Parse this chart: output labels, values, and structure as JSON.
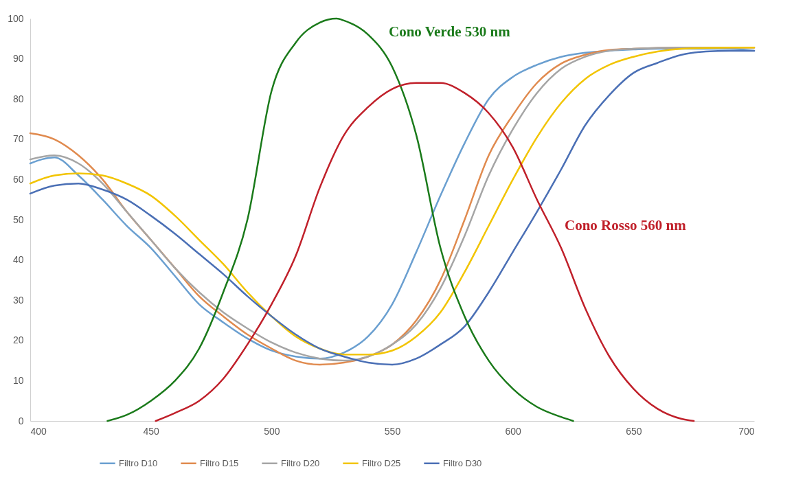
{
  "chart_data": {
    "type": "line",
    "xlim": [
      400,
      700
    ],
    "xticks": [
      400,
      450,
      500,
      550,
      600,
      650,
      700
    ],
    "ylim": [
      0,
      100
    ],
    "yticks": [
      0,
      10,
      20,
      30,
      40,
      50,
      60,
      70,
      80,
      90,
      100
    ],
    "grid": false,
    "legend": "bottom",
    "marker": "none",
    "line_style": "solid",
    "annotations": [
      "Cono Verde 530 nm",
      "Cono Rosso 560 nm"
    ],
    "series": [
      {
        "name": "Filtro D10",
        "color": "#6a9fd0",
        "x": [
          400,
          410,
          420,
          430,
          440,
          450,
          460,
          470,
          480,
          490,
          500,
          510,
          520,
          530,
          540,
          550,
          560,
          570,
          580,
          590,
          600,
          610,
          620,
          630,
          640,
          650,
          660,
          670,
          680,
          690,
          700
        ],
        "values": [
          64,
          65.5,
          61,
          55,
          48.5,
          43,
          36,
          29,
          24.5,
          20.5,
          17.5,
          16,
          15.5,
          17,
          21,
          29,
          42,
          56,
          69,
          80,
          85.5,
          88.5,
          90.5,
          91.5,
          92,
          92.3,
          92.5,
          92.5,
          92.5,
          92.5,
          92
        ]
      },
      {
        "name": "Filtro D15",
        "color": "#e08a4e",
        "x": [
          400,
          410,
          420,
          430,
          440,
          450,
          460,
          470,
          480,
          490,
          500,
          510,
          520,
          530,
          540,
          550,
          560,
          570,
          580,
          590,
          600,
          610,
          620,
          630,
          640,
          650,
          660,
          670,
          680,
          690,
          700
        ],
        "values": [
          71.5,
          70,
          66,
          60,
          52,
          45,
          38,
          31,
          26,
          21.5,
          18,
          15,
          14,
          14.5,
          16,
          19,
          25,
          35,
          50,
          66,
          76,
          84,
          88.8,
          91,
          92.2,
          92.5,
          92.7,
          92.8,
          92.8,
          92.8,
          92.8
        ]
      },
      {
        "name": "Filtro D20",
        "color": "#a5a5a5",
        "x": [
          400,
          410,
          420,
          430,
          440,
          450,
          460,
          470,
          480,
          490,
          500,
          510,
          520,
          530,
          540,
          550,
          560,
          570,
          580,
          590,
          600,
          610,
          620,
          630,
          640,
          650,
          660,
          670,
          680,
          690,
          700
        ],
        "values": [
          65,
          66,
          64,
          59,
          52,
          45,
          38,
          32,
          27,
          23,
          19.5,
          17,
          15.5,
          15,
          16,
          19,
          24,
          33,
          46,
          61,
          72.5,
          81.5,
          87.5,
          90.5,
          92,
          92.5,
          92.7,
          92.8,
          92.8,
          92.8,
          92.8
        ]
      },
      {
        "name": "Filtro D25",
        "color": "#f2c400",
        "x": [
          400,
          410,
          420,
          430,
          440,
          450,
          460,
          470,
          480,
          490,
          500,
          510,
          520,
          530,
          540,
          550,
          560,
          570,
          580,
          590,
          600,
          610,
          620,
          630,
          640,
          650,
          660,
          670,
          680,
          690,
          700
        ],
        "values": [
          59,
          61,
          61.5,
          61,
          59,
          56,
          51,
          45,
          39,
          32,
          26,
          21,
          18,
          16.5,
          16.5,
          17.5,
          21,
          27,
          37,
          48.5,
          60,
          70.5,
          79,
          85,
          88.5,
          90.5,
          91.8,
          92.5,
          92.7,
          92.8,
          92.8
        ]
      },
      {
        "name": "Filtro D30",
        "color": "#4a6fb5",
        "x": [
          400,
          410,
          420,
          430,
          440,
          450,
          460,
          470,
          480,
          490,
          500,
          510,
          520,
          530,
          540,
          550,
          560,
          570,
          580,
          590,
          600,
          610,
          620,
          630,
          640,
          650,
          660,
          670,
          680,
          690,
          700
        ],
        "values": [
          56.5,
          58.5,
          59,
          57.5,
          55,
          51,
          46.5,
          41.5,
          36.5,
          31,
          26,
          21.5,
          18,
          16,
          14.5,
          14,
          15.5,
          19,
          23.5,
          32,
          42,
          52,
          62.5,
          73.5,
          81,
          86.5,
          89,
          91,
          91.8,
          92,
          92
        ]
      },
      {
        "color": "#1a7a1a",
        "x": [
          432,
          440,
          450,
          460,
          470,
          480,
          490,
          500,
          510,
          520,
          527,
          530,
          540,
          550,
          560,
          570,
          580,
          590,
          600,
          610,
          620,
          625
        ],
        "values": [
          0,
          1.5,
          5,
          10,
          18,
          32,
          50,
          82,
          94,
          99,
          100,
          99.5,
          96,
          88,
          71,
          43,
          26,
          15,
          8,
          3.5,
          1,
          0
        ]
      },
      {
        "color": "#c0202a",
        "x": [
          452,
          460,
          470,
          480,
          490,
          500,
          510,
          520,
          530,
          540,
          550,
          560,
          570,
          580,
          590,
          600,
          610,
          620,
          630,
          640,
          650,
          660,
          670,
          675
        ],
        "values": [
          0,
          2,
          5,
          10.5,
          19,
          29,
          41,
          58,
          71,
          78,
          82.5,
          84,
          84,
          81.5,
          76.5,
          68,
          55,
          43,
          28,
          16,
          8,
          3,
          0.5,
          0
        ]
      }
    ]
  }
}
